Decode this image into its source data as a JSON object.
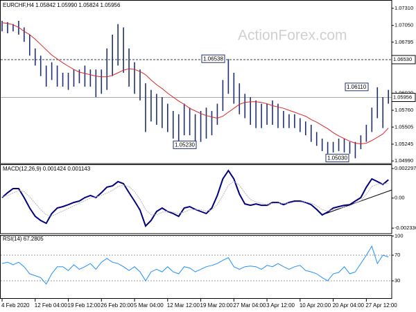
{
  "chart_data": [
    {
      "type": "ohlc",
      "title": "EURCHF,H4 1.05842 1.05990 1.05824 1.05956",
      "watermark": "ActionForex.com",
      "categories": [
        "4 Feb 2020",
        null,
        null,
        null,
        null,
        null,
        "12 Feb 04:00",
        null,
        null,
        null,
        null,
        null,
        "19 Feb 12:00",
        null,
        null,
        null,
        null,
        null,
        "26 Feb 20:00",
        null,
        null,
        null,
        null,
        null,
        "5 Mar 04:00",
        null,
        null,
        null,
        null,
        null,
        "12 Mar 12:00",
        null,
        null,
        null,
        null,
        null,
        "19 Mar 20:00",
        null,
        null,
        null,
        null,
        null,
        "27 Mar 04:00",
        null,
        null,
        null,
        null,
        null,
        "3 Apr 12:00",
        null,
        null,
        null,
        null,
        null,
        "10 Apr 20:00",
        null,
        null,
        null,
        null,
        null,
        "20 Apr 04:00",
        null,
        null,
        null,
        null,
        null,
        "27 Apr 12:00",
        null,
        null,
        null,
        null
      ],
      "high": [
        1.0712,
        1.071,
        1.0707,
        1.0712,
        1.0702,
        1.0691,
        1.067,
        1.0659,
        1.0644,
        1.0649,
        1.0644,
        1.0633,
        1.0633,
        1.0638,
        1.0638,
        1.0644,
        1.0638,
        1.0638,
        1.0638,
        1.067,
        1.0691,
        1.0707,
        1.0702,
        1.067,
        1.0649,
        1.0638,
        1.0617,
        1.0607,
        1.0601,
        1.0596,
        1.0586,
        1.0575,
        1.057,
        1.0586,
        1.058,
        1.057,
        1.0575,
        1.058,
        1.0575,
        1.0586,
        1.0622,
        1.06538,
        1.0633,
        1.0617,
        1.0601,
        1.0596,
        1.0591,
        1.0586,
        1.0586,
        1.0591,
        1.0586,
        1.0575,
        1.057,
        1.057,
        1.0564,
        1.0559,
        1.0554,
        1.0543,
        1.0533,
        1.0528,
        1.0528,
        1.0533,
        1.0533,
        1.0528,
        1.0528,
        1.0538,
        1.0554,
        1.058,
        1.0611,
        1.0596,
        1.0607
      ],
      "low": [
        1.0696,
        1.0693,
        1.0696,
        1.0691,
        1.068,
        1.0659,
        1.0644,
        1.0628,
        1.0612,
        1.0622,
        1.0612,
        1.0612,
        1.0607,
        1.0612,
        1.0617,
        1.0612,
        1.0612,
        1.0596,
        1.0601,
        1.0607,
        1.0628,
        1.0644,
        1.0633,
        1.0612,
        1.0601,
        1.0591,
        1.0543,
        1.0559,
        1.0554,
        1.0549,
        1.0543,
        1.0533,
        1.0523,
        1.0538,
        1.0538,
        1.0528,
        1.0528,
        1.0533,
        1.0538,
        1.0554,
        1.0575,
        1.0601,
        1.0586,
        1.057,
        1.0564,
        1.0554,
        1.0549,
        1.0549,
        1.0554,
        1.0554,
        1.0549,
        1.0549,
        1.0549,
        1.0549,
        1.0543,
        1.0538,
        1.0528,
        1.0522,
        1.0514,
        1.051,
        1.0512,
        1.0514,
        1.0512,
        1.051,
        1.0503,
        1.0517,
        1.0528,
        1.0543,
        1.0564,
        1.0549,
        1.0586
      ],
      "color": "#1f2f6e",
      "series": [
        {
          "color": "#e02424",
          "values": [
            1.0709,
            1.0708,
            1.0706,
            1.0702,
            1.0696,
            1.0691,
            1.0684,
            1.0676,
            1.0668,
            1.066,
            1.0654,
            1.0648,
            1.0643,
            1.0638,
            1.0634,
            1.0632,
            1.063,
            1.0628,
            1.0627,
            1.0627,
            1.0629,
            1.0633,
            1.0637,
            1.0639,
            1.0638,
            1.0635,
            1.063,
            1.0622,
            1.0615,
            1.0609,
            1.0602,
            1.0596,
            1.059,
            1.0585,
            1.0579,
            1.0575,
            1.0571,
            1.0568,
            1.0566,
            1.0564,
            1.0567,
            1.0573,
            1.0579,
            1.0585,
            1.0588,
            1.0589,
            1.0589,
            1.0588,
            1.0586,
            1.0583,
            1.0581,
            1.0579,
            1.0576,
            1.0573,
            1.057,
            1.0567,
            1.0562,
            1.0558,
            1.0553,
            1.0548,
            1.0542,
            1.0537,
            1.0533,
            1.0529,
            1.0526,
            1.0525,
            1.0526,
            1.053,
            1.0535,
            1.054,
            1.0549
          ]
        }
      ],
      "ylim": [
        1.0496,
        1.07415
      ],
      "yticks": [
        {
          "value": 1.0731,
          "label": "1.07310"
        },
        {
          "value": 1.0705,
          "label": "1.07050"
        },
        1.06795,
        {
          "value": 1.0602,
          "label": "1.06020"
        },
        {
          "value": 1.0576,
          "label": "1.05760"
        },
        1.05505,
        1.05245,
        {
          "value": 1.0499,
          "label": "1.04990"
        }
      ],
      "grid": false,
      "hlines": [
        {
          "value": 1.0653,
          "label": "1.06530"
        }
      ],
      "last_price": 1.05956,
      "annotations": [
        1.06538,
        {
          "value": 1.0523,
          "label": "1.05230"
        },
        {
          "value": 1.0611,
          "label": "1.06110"
        },
        {
          "value": 1.0503,
          "label": "1.05030"
        }
      ]
    },
    {
      "type": "line",
      "title": "MACD(12,26,9) 0.001424 0.001143",
      "series": [
        {
          "color": "#000080",
          "values": [
            4e-05,
            0.00042,
            0.00074,
            0.00074,
            4e-05,
            -0.00077,
            -0.00142,
            -0.00174,
            -0.00196,
            -0.0012,
            -0.00077,
            -0.00066,
            -0.00051,
            -0.00034,
            -0.00023,
            4e-05,
            0.0002,
            4e-05,
            0.00042,
            0.00085,
            0.00095,
            0.00128,
            0.00112,
            0.00042,
            -0.00023,
            -0.00093,
            -0.00217,
            -0.00174,
            -0.00104,
            -0.00077,
            -0.00104,
            -0.0012,
            -0.00142,
            -0.00077,
            -0.00066,
            -0.00088,
            -0.00104,
            -0.0012,
            -0.00077,
            0.0002,
            0.00149,
            0.00214,
            0.00149,
            0.00031,
            -0.00045,
            -0.00056,
            -0.00045,
            -0.00056,
            -0.00056,
            -0.00034,
            -0.00034,
            -0.00051,
            -0.00034,
            -0.00023,
            -0.00023,
            -0.00034,
            -0.00051,
            -0.00088,
            -0.00131,
            -0.00109,
            -0.00077,
            -0.00066,
            -0.00056,
            -0.00051,
            -0.00023,
            4e-05,
            0.00085,
            0.00149,
            0.00128,
            0.00106,
            0.001424
          ]
        },
        {
          "color": "#b8b8b8",
          "values": [
            0.0001,
            0.0002,
            0.0004,
            0.0006,
            0.0005,
            0.0001,
            -0.0004,
            -0.0009,
            -0.0013,
            -0.0014,
            -0.0012,
            -0.001,
            -0.0008,
            -0.0006,
            -0.0004,
            -0.0002,
            0,
            0.0001,
            0.0002,
            0.0004,
            0.0006,
            0.0009,
            0.001,
            0.0009,
            0.0005,
            -0.0001,
            -0.0009,
            -0.0013,
            -0.0013,
            -0.0011,
            -0.001,
            -0.0011,
            -0.0012,
            -0.0011,
            -0.0009,
            -0.0009,
            -0.0009,
            -0.001,
            -0.0009,
            -0.0005,
            0.0002,
            0.001,
            0.0013,
            0.001,
            0.0004,
            -0.0001,
            -0.0003,
            -0.0004,
            -0.0005,
            -0.0004,
            -0.0004,
            -0.0004,
            -0.0004,
            -0.0003,
            -0.0003,
            -0.0003,
            -0.0004,
            -0.0006,
            -0.0009,
            -0.001,
            -0.0009,
            -0.0008,
            -0.0007,
            -0.0006,
            -0.0004,
            -0.0002,
            0.0003,
            0.0009,
            0.0011,
            0.0011,
            0.001143
          ]
        }
      ],
      "ylim": [
        -0.00271,
        0.00257
      ],
      "yticks": [
        0.002297,
        {
          "value": 0,
          "label": "0.00"
        },
        -0.002336
      ],
      "grid": false
    },
    {
      "type": "line",
      "title": "RSI(14) 67.2805",
      "series": [
        {
          "color": "#1e8fff",
          "values": [
            57,
            59,
            55,
            59,
            52,
            41,
            38,
            35,
            25,
            41,
            52,
            52,
            46,
            55,
            48,
            52,
            57,
            48,
            59,
            65,
            59,
            57,
            52,
            46,
            52,
            44,
            30,
            44,
            48,
            44,
            52,
            44,
            41,
            52,
            50,
            44,
            48,
            52,
            54,
            57,
            62,
            66,
            52,
            48,
            52,
            53,
            52,
            48,
            54,
            52,
            57,
            52,
            48,
            52,
            54,
            46,
            44,
            41,
            35,
            30,
            41,
            43,
            52,
            41,
            44,
            57,
            70,
            84,
            57,
            70,
            67.2805
          ]
        }
      ],
      "ylim": [
        3,
        101.4
      ],
      "yticks": [
        100,
        70,
        30
      ],
      "grid": true
    }
  ]
}
